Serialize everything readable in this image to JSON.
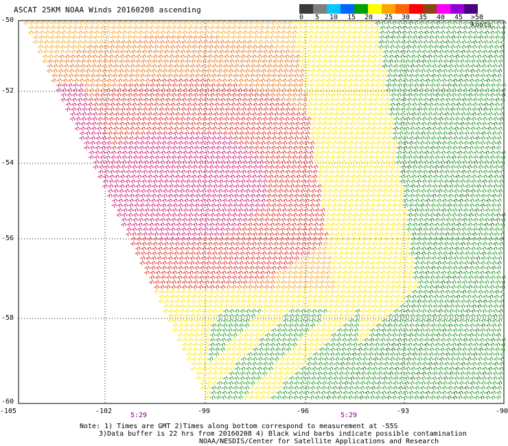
{
  "title": "ASCAT 25KM NOAA Winds 20160208 ascending",
  "scale": {
    "labels": [
      "0",
      "5",
      "10",
      "15",
      "20",
      "25",
      "30",
      "35",
      "40",
      "45",
      ">50 knots"
    ],
    "colors": [
      "#3a3a3a",
      "#7f7f7f",
      "#00c8ff",
      "#0064ff",
      "#00a000",
      "#ffff00",
      "#ffa500",
      "#ff6400",
      "#ff0000",
      "#8b4513",
      "#ff00ff",
      "#9400d3",
      "#4b0082"
    ]
  },
  "axes": {
    "y_labels": [
      "-50",
      "-52",
      "-54",
      "-56",
      "-58",
      "-60"
    ],
    "x_labels": [
      "-105",
      "-102",
      "-99",
      "-96",
      "-93",
      "-90"
    ]
  },
  "times": [
    "5:29",
    "5:29"
  ],
  "notes": {
    "line1": "Note: 1) Times are GMT 2)Times along bottom correspond to measurement at -55S",
    "line2": "3)Data buffer is 22 hrs from 20160208 4) Black wind barbs indicate possible contamination",
    "line3": "NOAA/NESDIS/Center for Satellite Applications and Research"
  },
  "wind_colors": {
    "yellow": "#ffe600",
    "orange": "#f5a623",
    "darkorange": "#e8741c",
    "red": "#d9322b",
    "magenta": "#cc1c74",
    "green": "#2e9c2e",
    "darkgreen": "#1f6f1f"
  }
}
